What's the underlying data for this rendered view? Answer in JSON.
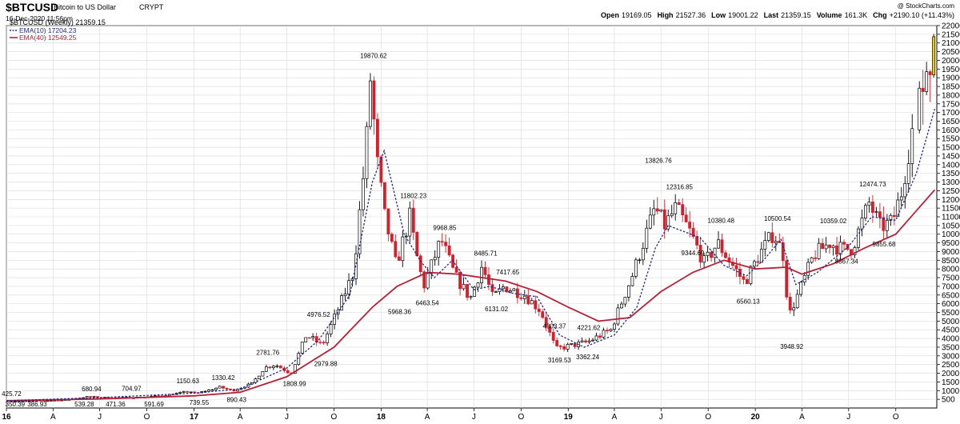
{
  "header": {
    "symbol": "$BTCUSD",
    "name": "Bitcoin to US Dollar",
    "exchange": "CRYPT",
    "date": "16-Dec-2020 11:56pm",
    "watermark": "@ StockCharts.com",
    "stats": [
      {
        "label": "Open",
        "value": "19169.05"
      },
      {
        "label": "High",
        "value": "21527.36"
      },
      {
        "label": "Low",
        "value": "19001.22"
      },
      {
        "label": "Last",
        "value": "21359.15"
      },
      {
        "label": "Volume",
        "value": "161.3K"
      },
      {
        "label": "Chg",
        "value": "+2190.10 (+11.43%)"
      }
    ]
  },
  "legend": {
    "series_label": "$BTCUSD (Weekly) 21359.15",
    "ema10_label": "EMA(10) 17204.23",
    "ema40_label": "EMA(40) 12549.25"
  },
  "colors": {
    "up": "#ffffff",
    "up_border": "#000000",
    "down": "#d4202c",
    "ema10": "#1f2a8c",
    "ema40": "#b8203a",
    "grid": "#d9d9d9",
    "current": "#f0d000"
  },
  "chart_data": {
    "type": "candlestick",
    "interval": "weekly",
    "ylim": [
      0,
      22000
    ],
    "yticks": [
      500,
      1000,
      1500,
      2000,
      2500,
      3000,
      3500,
      4000,
      4500,
      5000,
      5500,
      6000,
      6500,
      7000,
      7500,
      8000,
      8500,
      9000,
      9500,
      10000,
      10500,
      11000,
      11500,
      12000,
      12500,
      13000,
      13500,
      14000,
      14500,
      15000,
      15500,
      16000,
      16500,
      17000,
      17500,
      18000,
      18500,
      19000,
      19500,
      20000,
      20500,
      21000,
      21500,
      22000
    ],
    "x_labels": [
      {
        "label": "16",
        "date": "2016-01-01"
      },
      {
        "label": "A",
        "date": "2016-04-01"
      },
      {
        "label": "J",
        "date": "2016-07-01"
      },
      {
        "label": "O",
        "date": "2016-10-01"
      },
      {
        "label": "17",
        "date": "2017-01-01"
      },
      {
        "label": "A",
        "date": "2017-04-01"
      },
      {
        "label": "J",
        "date": "2017-07-01"
      },
      {
        "label": "O",
        "date": "2017-10-01"
      },
      {
        "label": "18",
        "date": "2018-01-01"
      },
      {
        "label": "A",
        "date": "2018-04-01"
      },
      {
        "label": "J",
        "date": "2018-07-01"
      },
      {
        "label": "O",
        "date": "2018-10-01"
      },
      {
        "label": "19",
        "date": "2019-01-01"
      },
      {
        "label": "A",
        "date": "2019-04-01"
      },
      {
        "label": "J",
        "date": "2019-07-01"
      },
      {
        "label": "O",
        "date": "2019-10-01"
      },
      {
        "label": "20",
        "date": "2020-01-01"
      },
      {
        "label": "A",
        "date": "2020-04-01"
      },
      {
        "label": "J",
        "date": "2020-07-01"
      },
      {
        "label": "O",
        "date": "2020-10-01"
      }
    ],
    "annotations": [
      {
        "date": "2016-01-11",
        "value": 425.72,
        "text": "425.72",
        "pos": "above"
      },
      {
        "date": "2016-01-18",
        "value": 350.39,
        "text": "350.39",
        "pos": "below"
      },
      {
        "date": "2016-03-01",
        "value": 386.93,
        "text": "386.93",
        "pos": "below"
      },
      {
        "date": "2016-06-01",
        "value": 539.28,
        "text": "539.28",
        "pos": "below"
      },
      {
        "date": "2016-06-15",
        "value": 680.94,
        "text": "680.94",
        "pos": "above"
      },
      {
        "date": "2016-08-01",
        "value": 471.36,
        "text": "471.36",
        "pos": "below"
      },
      {
        "date": "2016-09-01",
        "value": 704.97,
        "text": "704.97",
        "pos": "above"
      },
      {
        "date": "2016-10-15",
        "value": 591.69,
        "text": "591.69",
        "pos": "below"
      },
      {
        "date": "2016-12-20",
        "value": 1150.63,
        "text": "1150.63",
        "pos": "above"
      },
      {
        "date": "2017-01-11",
        "value": 739.55,
        "text": "739.55",
        "pos": "below"
      },
      {
        "date": "2017-02-27",
        "value": 1330.42,
        "text": "1330.42",
        "pos": "above"
      },
      {
        "date": "2017-03-25",
        "value": 890.43,
        "text": "890.43",
        "pos": "below"
      },
      {
        "date": "2017-05-25",
        "value": 2781.76,
        "text": "2781.76",
        "pos": "above"
      },
      {
        "date": "2017-07-16",
        "value": 1808.99,
        "text": "1808.99",
        "pos": "below"
      },
      {
        "date": "2017-09-01",
        "value": 4976.52,
        "text": "4976.52",
        "pos": "above"
      },
      {
        "date": "2017-09-15",
        "value": 2979.88,
        "text": "2979.88",
        "pos": "below"
      },
      {
        "date": "2017-12-17",
        "value": 19870.62,
        "text": "19870.62",
        "pos": "above"
      },
      {
        "date": "2018-02-06",
        "value": 5968.36,
        "text": "5968.36",
        "pos": "below"
      },
      {
        "date": "2018-03-05",
        "value": 11802.23,
        "text": "11802.23",
        "pos": "above"
      },
      {
        "date": "2018-04-01",
        "value": 6463.54,
        "text": "6463.54",
        "pos": "below"
      },
      {
        "date": "2018-05-05",
        "value": 9968.85,
        "text": "9968.85",
        "pos": "above"
      },
      {
        "date": "2018-07-24",
        "value": 8485.71,
        "text": "8485.71",
        "pos": "above"
      },
      {
        "date": "2018-09-05",
        "value": 7417.65,
        "text": "7417.65",
        "pos": "above"
      },
      {
        "date": "2018-08-14",
        "value": 6131.02,
        "text": "6131.02",
        "pos": "below"
      },
      {
        "date": "2018-12-05",
        "value": 4303.37,
        "text": "4303.37",
        "pos": "above"
      },
      {
        "date": "2018-12-15",
        "value": 3169.53,
        "text": "3169.53",
        "pos": "below"
      },
      {
        "date": "2019-02-10",
        "value": 4221.62,
        "text": "4221.62",
        "pos": "above"
      },
      {
        "date": "2019-02-08",
        "value": 3362.24,
        "text": "3362.24",
        "pos": "below"
      },
      {
        "date": "2019-06-26",
        "value": 13826.76,
        "text": "13826.76",
        "pos": "above"
      },
      {
        "date": "2019-08-06",
        "value": 12316.85,
        "text": "12316.85",
        "pos": "above"
      },
      {
        "date": "2019-09-01",
        "value": 9344.69,
        "text": "9344.69",
        "pos": "below"
      },
      {
        "date": "2019-10-26",
        "value": 10380.48,
        "text": "10380.48",
        "pos": "above"
      },
      {
        "date": "2019-12-18",
        "value": 6560.13,
        "text": "6560.13",
        "pos": "below"
      },
      {
        "date": "2020-02-13",
        "value": 10500.54,
        "text": "10500.54",
        "pos": "above"
      },
      {
        "date": "2020-03-12",
        "value": 3948.92,
        "text": "3948.92",
        "pos": "below"
      },
      {
        "date": "2020-06-01",
        "value": 10359.02,
        "text": "10359.02",
        "pos": "above"
      },
      {
        "date": "2020-06-27",
        "value": 8867.34,
        "text": "8867.34",
        "pos": "below"
      },
      {
        "date": "2020-08-17",
        "value": 12474.73,
        "text": "12474.73",
        "pos": "above"
      },
      {
        "date": "2020-09-08",
        "value": 9855.68,
        "text": "9855.68",
        "pos": "below"
      }
    ],
    "ema40": [
      [
        "2016-01-01",
        420
      ],
      [
        "2016-07-01",
        520
      ],
      [
        "2017-01-01",
        700
      ],
      [
        "2017-04-01",
        900
      ],
      [
        "2017-07-01",
        1800
      ],
      [
        "2017-10-01",
        3500
      ],
      [
        "2017-12-15",
        5800
      ],
      [
        "2018-02-01",
        7000
      ],
      [
        "2018-04-01",
        7800
      ],
      [
        "2018-06-01",
        7700
      ],
      [
        "2018-09-01",
        7300
      ],
      [
        "2018-11-01",
        6700
      ],
      [
        "2019-01-01",
        5800
      ],
      [
        "2019-03-01",
        5000
      ],
      [
        "2019-05-01",
        5200
      ],
      [
        "2019-07-01",
        6700
      ],
      [
        "2019-09-01",
        7800
      ],
      [
        "2019-11-01",
        8500
      ],
      [
        "2020-01-01",
        8000
      ],
      [
        "2020-03-01",
        8100
      ],
      [
        "2020-04-01",
        7700
      ],
      [
        "2020-06-01",
        8300
      ],
      [
        "2020-08-01",
        9200
      ],
      [
        "2020-10-01",
        10000
      ],
      [
        "2020-12-16",
        12549.25
      ]
    ],
    "ema10": [
      [
        "2016-01-01",
        420
      ],
      [
        "2016-07-01",
        600
      ],
      [
        "2017-01-01",
        850
      ],
      [
        "2017-04-01",
        1100
      ],
      [
        "2017-07-01",
        2300
      ],
      [
        "2017-09-01",
        3900
      ],
      [
        "2017-11-01",
        6500
      ],
      [
        "2017-12-15",
        13000
      ],
      [
        "2018-01-07",
        14800
      ],
      [
        "2018-02-15",
        10000
      ],
      [
        "2018-03-20",
        8400
      ],
      [
        "2018-04-15",
        7500
      ],
      [
        "2018-05-20",
        8500
      ],
      [
        "2018-07-01",
        6800
      ],
      [
        "2018-08-01",
        7000
      ],
      [
        "2018-09-15",
        6600
      ],
      [
        "2018-11-01",
        6400
      ],
      [
        "2018-12-15",
        4200
      ],
      [
        "2019-02-01",
        3500
      ],
      [
        "2019-04-01",
        4200
      ],
      [
        "2019-05-15",
        5800
      ],
      [
        "2019-06-20",
        9200
      ],
      [
        "2019-07-15",
        10500
      ],
      [
        "2019-09-15",
        9800
      ],
      [
        "2019-11-01",
        8200
      ],
      [
        "2019-12-15",
        7600
      ],
      [
        "2020-01-20",
        8600
      ],
      [
        "2020-02-20",
        9700
      ],
      [
        "2020-03-20",
        7100
      ],
      [
        "2020-05-01",
        7800
      ],
      [
        "2020-07-01",
        9300
      ],
      [
        "2020-08-15",
        11000
      ],
      [
        "2020-10-01",
        10800
      ],
      [
        "2020-11-10",
        13500
      ],
      [
        "2020-12-16",
        17204.23
      ]
    ],
    "candles": [
      [
        "2020-11-16",
        16000,
        18800,
        15800,
        18400
      ],
      [
        "2020-11-23",
        18400,
        19450,
        16300,
        18200
      ],
      [
        "2020-11-30",
        18200,
        19920,
        18000,
        19350
      ],
      [
        "2020-12-07",
        19350,
        19450,
        17600,
        19169.05
      ],
      [
        "2020-12-14",
        19169.05,
        21527.36,
        19001.22,
        21359.15
      ]
    ],
    "waypoints": [
      [
        "2016-01-01",
        430
      ],
      [
        "2016-01-18",
        380
      ],
      [
        "2016-03-01",
        410
      ],
      [
        "2016-05-01",
        450
      ],
      [
        "2016-06-15",
        650
      ],
      [
        "2016-08-01",
        580
      ],
      [
        "2016-10-01",
        620
      ],
      [
        "2016-11-15",
        740
      ],
      [
        "2016-12-31",
        960
      ],
      [
        "2017-01-11",
        820
      ],
      [
        "2017-02-27",
        1200
      ],
      [
        "2017-03-25",
        1000
      ],
      [
        "2017-05-01",
        1400
      ],
      [
        "2017-05-25",
        2300
      ],
      [
        "2017-06-15",
        2500
      ],
      [
        "2017-07-16",
        2000
      ],
      [
        "2017-08-15",
        4200
      ],
      [
        "2017-09-15",
        3600
      ],
      [
        "2017-10-15",
        5600
      ],
      [
        "2017-11-15",
        7800
      ],
      [
        "2017-12-10",
        15000
      ],
      [
        "2017-12-17",
        19300
      ],
      [
        "2018-01-01",
        14000
      ],
      [
        "2018-01-15",
        11000
      ],
      [
        "2018-02-06",
        8200
      ],
      [
        "2018-03-05",
        11000
      ],
      [
        "2018-03-20",
        8500
      ],
      [
        "2018-04-01",
        7000
      ],
      [
        "2018-05-05",
        9700
      ],
      [
        "2018-06-01",
        7600
      ],
      [
        "2018-07-01",
        6300
      ],
      [
        "2018-07-24",
        8200
      ],
      [
        "2018-08-14",
        6300
      ],
      [
        "2018-09-05",
        7000
      ],
      [
        "2018-10-15",
        6500
      ],
      [
        "2018-11-15",
        5600
      ],
      [
        "2018-12-15",
        3400
      ],
      [
        "2019-01-15",
        3600
      ],
      [
        "2019-02-15",
        3800
      ],
      [
        "2019-04-01",
        4500
      ],
      [
        "2019-05-15",
        7800
      ],
      [
        "2019-06-26",
        11500
      ],
      [
        "2019-07-15",
        10500
      ],
      [
        "2019-08-06",
        11500
      ],
      [
        "2019-09-01",
        10200
      ],
      [
        "2019-10-01",
        8300
      ],
      [
        "2019-10-26",
        9500
      ],
      [
        "2019-12-18",
        7200
      ],
      [
        "2020-01-15",
        8800
      ],
      [
        "2020-02-13",
        10100
      ],
      [
        "2020-03-05",
        8600
      ],
      [
        "2020-03-12",
        5200
      ],
      [
        "2020-04-01",
        6600
      ],
      [
        "2020-05-01",
        8800
      ],
      [
        "2020-06-01",
        9500
      ],
      [
        "2020-06-27",
        9100
      ],
      [
        "2020-07-15",
        9200
      ],
      [
        "2020-08-17",
        11800
      ],
      [
        "2020-09-08",
        10400
      ],
      [
        "2020-10-01",
        10700
      ],
      [
        "2020-10-20",
        12500
      ],
      [
        "2020-11-09",
        16000
      ]
    ]
  }
}
